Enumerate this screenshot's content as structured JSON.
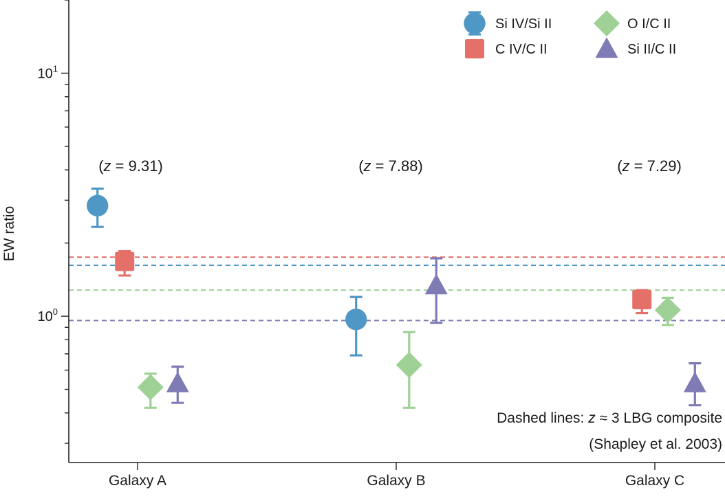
{
  "chart_data": {
    "type": "scatter",
    "ylabel": "EW ratio",
    "yscale": "log",
    "ylim": [
      0.25,
      20
    ],
    "ymajor_ticks": [
      {
        "value": 1,
        "base": "10",
        "exp": "0"
      },
      {
        "value": 10,
        "base": "10",
        "exp": "1"
      }
    ],
    "yminor_ticks": [
      0.3,
      0.4,
      0.5,
      0.6,
      0.7,
      0.8,
      0.9,
      2,
      3,
      4,
      5,
      6,
      7,
      8,
      9,
      20
    ],
    "categories": [
      "Galaxy A",
      "Galaxy B",
      "Galaxy C"
    ],
    "redshift_labels": [
      {
        "prefix": "(",
        "var": "z",
        "text": " = 9.31)"
      },
      {
        "prefix": "(",
        "var": "z",
        "text": " = 7.88)"
      },
      {
        "prefix": "(",
        "var": "z",
        "text": " = 7.29)"
      }
    ],
    "series": [
      {
        "name": "Si IV/Si II",
        "marker": "circle",
        "color": "#4f97c5",
        "offset": -0.155,
        "points": [
          {
            "category": "Galaxy A",
            "y": 2.85,
            "lo": 2.33,
            "hi": 3.35
          },
          {
            "category": "Galaxy B",
            "y": 0.97,
            "lo": 0.69,
            "hi": 1.2
          },
          {
            "category": "Galaxy C",
            "y": null
          }
        ],
        "reference": 1.62
      },
      {
        "name": "C IV/C II",
        "marker": "square",
        "color": "#e5706a",
        "offset": -0.05,
        "points": [
          {
            "category": "Galaxy A",
            "y": 1.68,
            "lo": 1.47,
            "hi": 1.85
          },
          {
            "category": "Galaxy B",
            "y": null
          },
          {
            "category": "Galaxy C",
            "y": 1.17,
            "lo": 1.03,
            "hi": 1.28
          }
        ],
        "reference": 1.75
      },
      {
        "name": "O I/C II",
        "marker": "diamond",
        "color": "#9fd196",
        "offset": 0.05,
        "points": [
          {
            "category": "Galaxy A",
            "y": 0.51,
            "lo": 0.42,
            "hi": 0.58
          },
          {
            "category": "Galaxy B",
            "y": 0.63,
            "lo": 0.42,
            "hi": 0.86
          },
          {
            "category": "Galaxy C",
            "y": 1.06,
            "lo": 0.92,
            "hi": 1.19
          }
        ],
        "reference": 1.28
      },
      {
        "name": "Si II/C II",
        "marker": "triangle",
        "color": "#7e7bb5",
        "offset": 0.155,
        "points": [
          {
            "category": "Galaxy A",
            "y": 0.53,
            "lo": 0.44,
            "hi": 0.62
          },
          {
            "category": "Galaxy B",
            "y": 1.34,
            "lo": 0.94,
            "hi": 1.73
          },
          {
            "category": "Galaxy C",
            "y": 0.53,
            "lo": 0.43,
            "hi": 0.64
          }
        ],
        "reference": 0.96
      }
    ],
    "legend_position": "top-right",
    "note": {
      "line1_prefix": "Dashed lines: ",
      "line1_var": "z",
      "line1_suffix": " ≈ 3 LBG composite",
      "line2": "(Shapley et al. 2003)"
    }
  }
}
